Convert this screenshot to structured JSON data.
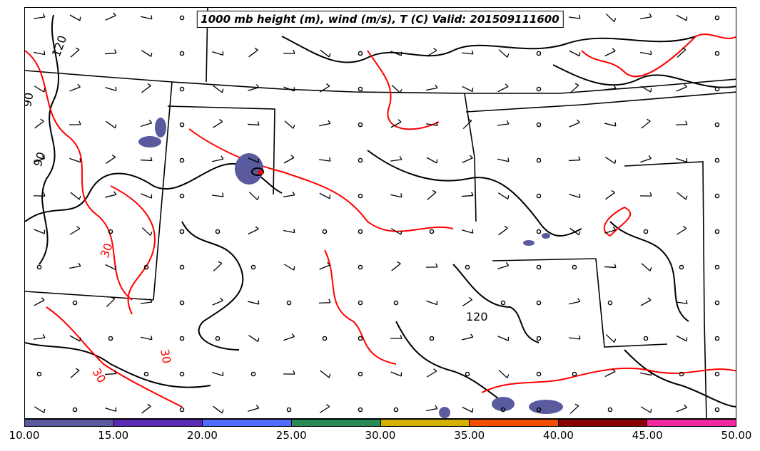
{
  "title": "1000 mb height (m), wind (m/s), T (C) Valid: 201509111600",
  "contour_labels": {
    "height_120": "120",
    "height_90": "90",
    "height_90b": "90",
    "temp_30a": "30",
    "temp_30b": "30",
    "temp_30c": "30"
  },
  "colors": {
    "height_contour": "#000000",
    "temp_contour": "#ff0000",
    "wind_shade": "#5a5a9e"
  },
  "colorbar": {
    "ticks": [
      "10.00",
      "15.00",
      "20.00",
      "25.00",
      "30.00",
      "35.00",
      "40.00",
      "45.00",
      "50.00"
    ],
    "colors": [
      "#5a5a9e",
      "#5a2ab4",
      "#4f6cff",
      "#2a8a55",
      "#d4b000",
      "#f25000",
      "#8b0000",
      "#f22aa0"
    ]
  },
  "icons": [
    "wind-barb-icon",
    "calm-circle-icon"
  ]
}
